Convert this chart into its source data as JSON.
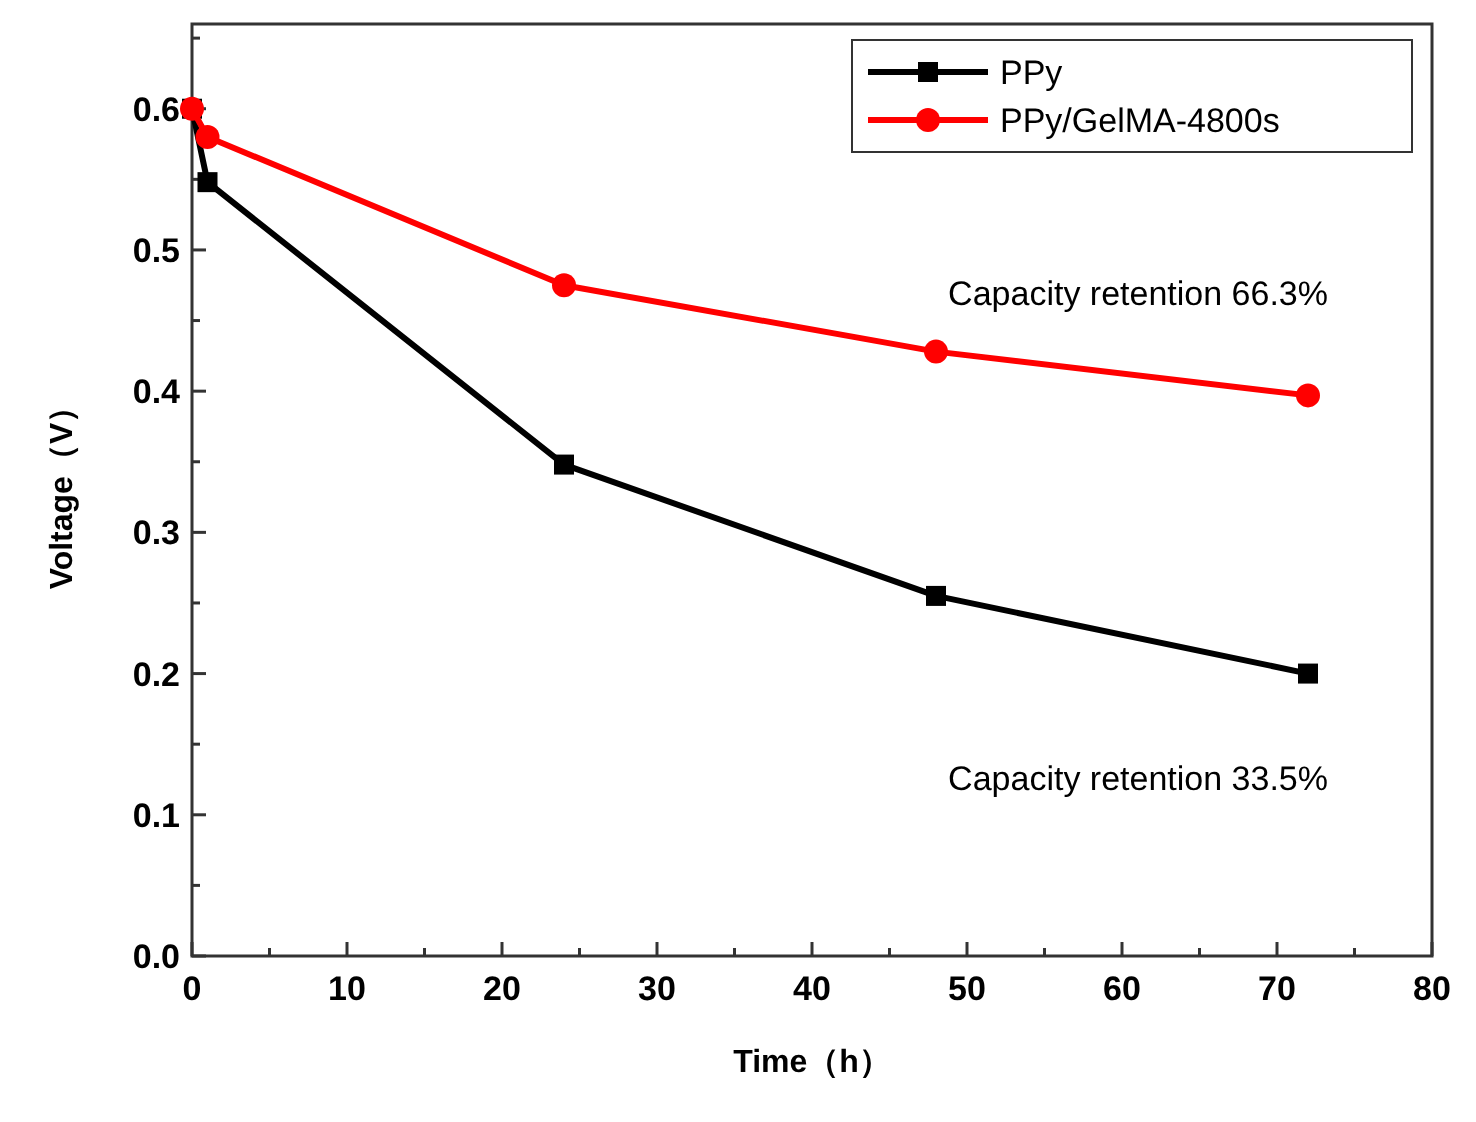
{
  "chart_data": {
    "type": "line",
    "xlabel": "Time（h）",
    "ylabel": "Voltage（V）",
    "xlim": [
      0,
      80
    ],
    "xticks": [
      0,
      {
        "value": 5,
        "label": null
      },
      10,
      {
        "value": 15,
        "label": null
      },
      20,
      {
        "value": 25,
        "label": null
      },
      30,
      {
        "value": 35,
        "label": null
      },
      40,
      {
        "value": 45,
        "label": null
      },
      50,
      {
        "value": 55,
        "label": null
      },
      60,
      {
        "value": 65,
        "label": null
      },
      70,
      {
        "value": 75,
        "label": null
      },
      80
    ],
    "ylim": [
      0,
      0.66
    ],
    "yticks": [
      {
        "value": 0,
        "label": "0.0"
      },
      {
        "value": 0.05,
        "label": null
      },
      0.1,
      {
        "value": 0.15,
        "label": null
      },
      0.2,
      {
        "value": 0.25,
        "label": null
      },
      0.3,
      {
        "value": 0.35,
        "label": null
      },
      0.4,
      {
        "value": 0.45,
        "label": null
      },
      0.5,
      {
        "value": 0.55,
        "label": null
      },
      0.6,
      {
        "value": 0.65,
        "label": null
      }
    ],
    "x": [
      0,
      1,
      24,
      48,
      72
    ],
    "series": [
      {
        "name": "PPy",
        "color": "#000000",
        "marker": "square",
        "values": [
          0.6,
          0.548,
          0.348,
          0.255,
          0.2
        ]
      },
      {
        "name": "PPy/GelMA-4800s",
        "color": "#ff0000",
        "marker": "circle",
        "values": [
          0.6,
          0.58,
          0.475,
          0.428,
          0.397
        ]
      }
    ],
    "annotations": [
      {
        "text": "Capacity retention 66.3%",
        "x": 72,
        "y": 0.397
      },
      {
        "text": "Capacity retention 33.5%",
        "x": 72,
        "y": 0.2
      }
    ],
    "legend": "top right",
    "grid": false,
    "line_style": "solid"
  }
}
